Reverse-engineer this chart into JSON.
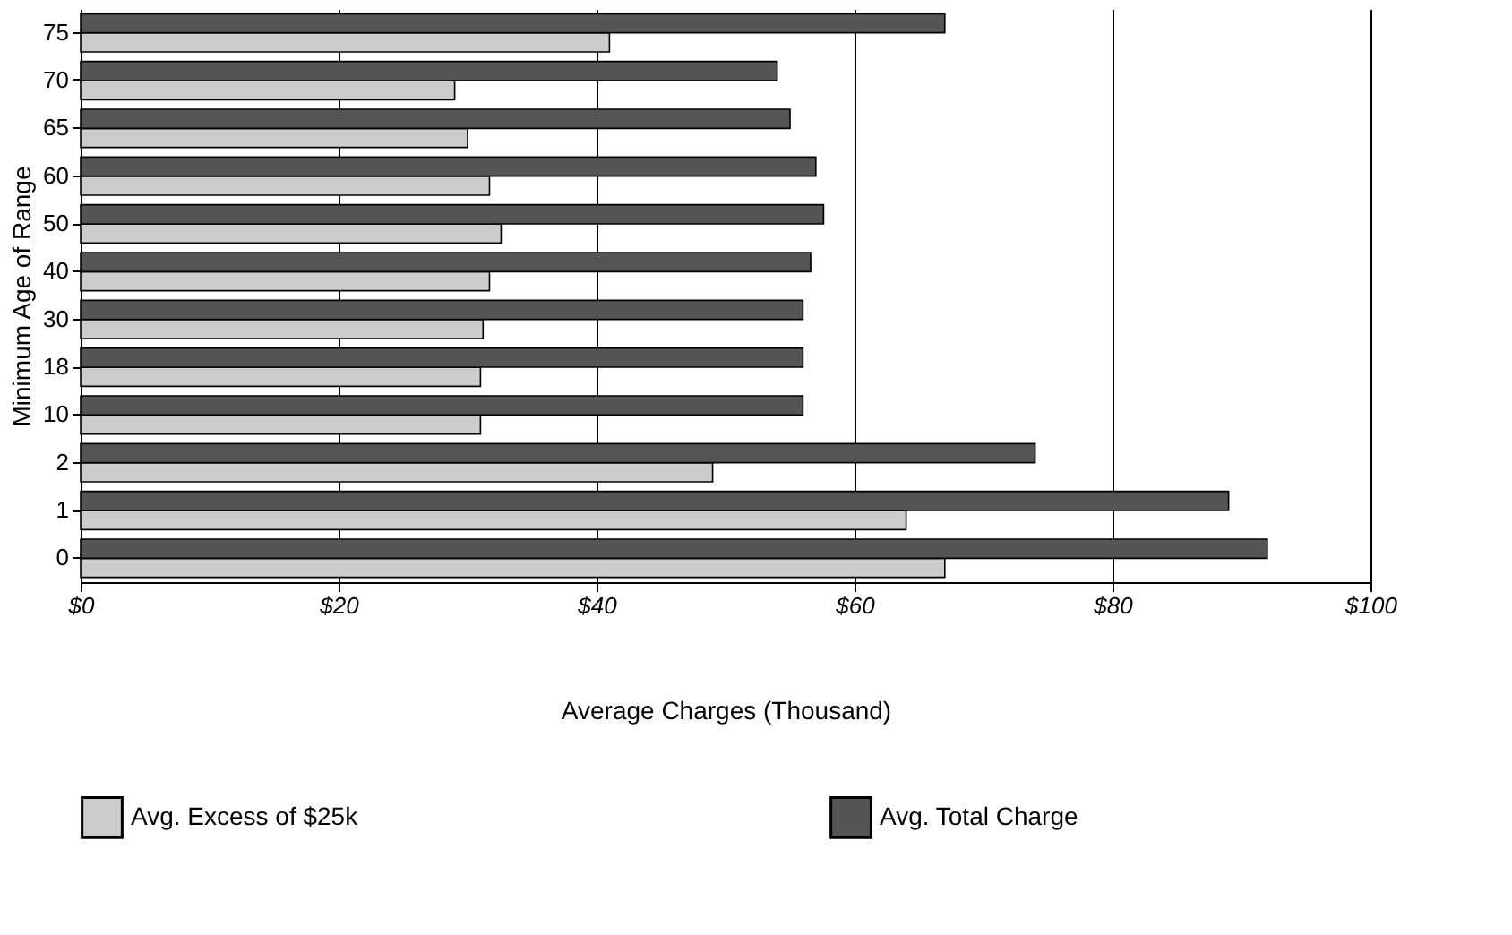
{
  "chart_data": {
    "type": "bar",
    "orientation": "horizontal",
    "xlabel": "Average Charges (Thousand)",
    "ylabel": "Minimum Age of Range",
    "categories": [
      "75",
      "70",
      "65",
      "60",
      "50",
      "40",
      "30",
      "18",
      "10",
      "2",
      "1",
      "0"
    ],
    "series": [
      {
        "name": "Avg. Excess of $25k",
        "color": "#cccccc",
        "values": [
          41,
          29,
          30,
          31.7,
          32.6,
          31.7,
          31.2,
          31,
          31,
          49,
          64,
          67
        ]
      },
      {
        "name": "Avg. Total Charge",
        "color": "#555555",
        "values": [
          67,
          54,
          55,
          57,
          57.6,
          56.6,
          56,
          56,
          56,
          74,
          89,
          92
        ]
      }
    ],
    "xlim": [
      0,
      100
    ],
    "xticks": [
      {
        "value": 0,
        "label": "$0"
      },
      {
        "value": 20,
        "label": "$20"
      },
      {
        "value": 40,
        "label": "$40"
      },
      {
        "value": 60,
        "label": "$60"
      },
      {
        "value": 80,
        "label": "$80"
      },
      {
        "value": 100,
        "label": "$100"
      }
    ],
    "grid": "x",
    "legend": "bottom"
  }
}
